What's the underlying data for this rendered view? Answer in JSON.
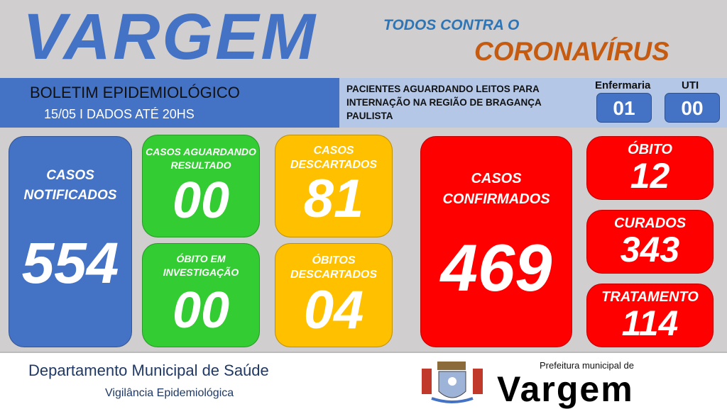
{
  "header": {
    "title": "VARGEM",
    "slogan_1": "TODOS CONTRA O",
    "slogan_2": "CORONAVÍRUS"
  },
  "bulletin": {
    "title": "BOLETIM EPIDEMIOLÓGICO",
    "date": "15/05 I DADOS ATÉ 20HS"
  },
  "beds": {
    "text_1": "PACIENTES AGUARDANDO LEITOS PARA",
    "text_2": "INTERNAÇÃO NA REGIÃO DE BRAGANÇA",
    "text_3": "PAULISTA",
    "ward_label": "Enfermaria",
    "ward_value": "01",
    "icu_label": "UTI",
    "icu_value": "00"
  },
  "cards": {
    "notified": {
      "l1": "CASOS",
      "l2": "NOTIFICADOS",
      "value": "554"
    },
    "awaiting": {
      "l1": "CASOS AGUARDANDO",
      "l2": "RESULTADO",
      "value": "00"
    },
    "death_inv": {
      "l1": "ÓBITO EM",
      "l2": "INVESTIGAÇÃO",
      "value": "00"
    },
    "discarded": {
      "l1": "CASOS",
      "l2": "DESCARTADOS",
      "value": "81"
    },
    "deaths_discarded": {
      "l1": "ÓBITOS",
      "l2": "DESCARTADOS",
      "value": "04"
    },
    "confirmed": {
      "l1": "CASOS",
      "l2": "CONFIRMADOS",
      "value": "469"
    },
    "deaths": {
      "l1": "ÓBITO",
      "value": "12"
    },
    "cured": {
      "l1": "CURADOS",
      "value": "343"
    },
    "treatment": {
      "l1": "TRATAMENTO",
      "value": "114"
    }
  },
  "footer": {
    "dept": "Departamento Municipal de Saúde",
    "sub": "Vigilância Epidemiológica",
    "logo_small": "Prefeitura municipal de",
    "logo_big": "Vargem"
  },
  "colors": {
    "blue": "#4472c4",
    "green": "#33cc33",
    "yellow": "#ffc000",
    "red": "#ff0000",
    "orange": "#c55a11"
  }
}
